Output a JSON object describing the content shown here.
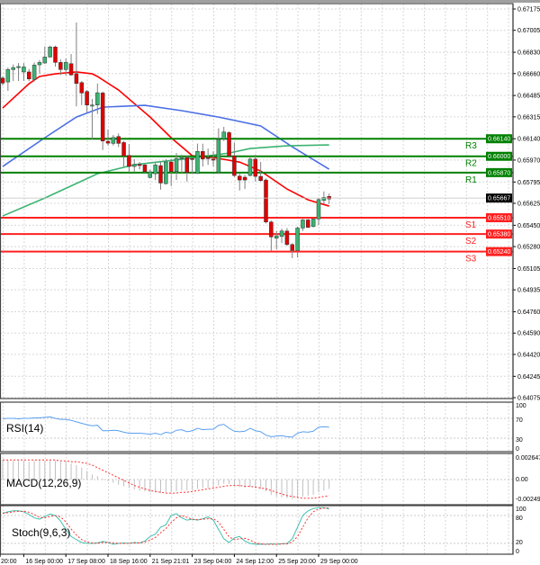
{
  "chart_data": [
    {
      "type": "candlestick",
      "price_axis": {
        "min": 0.64075,
        "max": 0.67175,
        "tick_labels": [
          "0.67175",
          "0.67005",
          "0.66830",
          "0.66660",
          "0.66485",
          "0.66315",
          "0.66140",
          "0.65970",
          "0.65795",
          "0.65625",
          "0.65450",
          "0.65280",
          "0.65105",
          "0.64935",
          "0.64760",
          "0.64590",
          "0.64420",
          "0.64245",
          "0.64075"
        ]
      },
      "time_axis": {
        "tick_labels": [
          {
            "label": "20:00",
            "candle": -0.5
          },
          {
            "label": "16 Sep 00:00",
            "candle": 4
          },
          {
            "label": "17 Sep 08:00",
            "candle": 12
          },
          {
            "label": "18 Sep 16:00",
            "candle": 20
          },
          {
            "label": "21 Sep 21:01",
            "candle": 28
          },
          {
            "label": "23 Sep 04:00",
            "candle": 36
          },
          {
            "label": "24 Sep 12:00",
            "candle": 44
          },
          {
            "label": "25 Sep 20:00",
            "candle": 52
          },
          {
            "label": "29 Sep 00:00",
            "candle": 60
          }
        ]
      },
      "grid": true,
      "ohlc": [
        [
          0.66624,
          0.66637,
          0.66565,
          0.66584
        ],
        [
          0.66593,
          0.66708,
          0.66522,
          0.66692
        ],
        [
          0.66692,
          0.66732,
          0.66601,
          0.66708
        ],
        [
          0.66708,
          0.66744,
          0.66601,
          0.66716
        ],
        [
          0.66673,
          0.66744,
          0.66601,
          0.66713
        ],
        [
          0.66673,
          0.66696,
          0.66601,
          0.66617
        ],
        [
          0.66613,
          0.66749,
          0.66596,
          0.66728
        ],
        [
          0.6673,
          0.66768,
          0.6666,
          0.66749
        ],
        [
          0.66744,
          0.66876,
          0.66739,
          0.66792
        ],
        [
          0.66792,
          0.66883,
          0.66787,
          0.66872
        ],
        [
          0.66872,
          0.66883,
          0.66716,
          0.66749
        ],
        [
          0.66749,
          0.66773,
          0.66649,
          0.66692
        ],
        [
          0.66692,
          0.6678,
          0.66644,
          0.66749
        ],
        [
          0.66739,
          0.66816,
          0.66644,
          0.66649
        ],
        [
          0.6666,
          0.67067,
          0.66399,
          0.66581
        ],
        [
          0.66588,
          0.66601,
          0.66409,
          0.66505
        ],
        [
          0.66517,
          0.66529,
          0.66349,
          0.66409
        ],
        [
          0.66409,
          0.66457,
          0.66134,
          0.66409
        ],
        [
          0.66409,
          0.66581,
          0.66337,
          0.66507
        ],
        [
          0.66505,
          0.66517,
          0.6605,
          0.66122
        ],
        [
          0.6612,
          0.66213,
          0.66086,
          0.66105
        ],
        [
          0.66103,
          0.6617,
          0.66086,
          0.6615
        ],
        [
          0.66158,
          0.66182,
          0.66074,
          0.66103
        ],
        [
          0.6611,
          0.66122,
          0.65919,
          0.66003
        ],
        [
          0.66007,
          0.66098,
          0.65871,
          0.65919
        ],
        [
          0.65919,
          0.65978,
          0.65871,
          0.65935
        ],
        [
          0.65935,
          0.65955,
          0.65895,
          0.65931
        ],
        [
          0.65931,
          0.65942,
          0.65871,
          0.65878
        ],
        [
          0.65831,
          0.65895,
          0.65823,
          0.65876
        ],
        [
          0.65861,
          0.65955,
          0.65811,
          0.65931
        ],
        [
          0.65926,
          0.65955,
          0.65734,
          0.65787
        ],
        [
          0.65782,
          0.65978,
          0.65775,
          0.65955
        ],
        [
          0.65955,
          0.65978,
          0.65763,
          0.65878
        ],
        [
          0.65878,
          0.66026,
          0.65811,
          0.65983
        ],
        [
          0.65983,
          0.66014,
          0.65859,
          0.6599
        ],
        [
          0.6599,
          0.66003,
          0.65799,
          0.65871
        ],
        [
          0.65983,
          0.65985,
          0.65859,
          0.6598
        ],
        [
          0.65863,
          0.66101,
          0.65859,
          0.66039
        ],
        [
          0.66039,
          0.66101,
          0.65919,
          0.65978
        ],
        [
          0.6599,
          0.66062,
          0.65931,
          0.65983
        ],
        [
          0.65978,
          0.66039,
          0.65919,
          0.65976
        ],
        [
          0.65871,
          0.66223,
          0.65859,
          0.66134
        ],
        [
          0.66139,
          0.66235,
          0.66122,
          0.66194
        ],
        [
          0.66189,
          0.66199,
          0.6599,
          0.66003
        ],
        [
          0.66003,
          0.6611,
          0.65835,
          0.65847
        ],
        [
          0.65842,
          0.65861,
          0.65727,
          0.65811
        ],
        [
          0.65833,
          0.65852,
          0.65739,
          0.65811
        ],
        [
          0.65847,
          0.6599,
          0.6584,
          0.65978
        ],
        [
          0.65978,
          0.66014,
          0.65799,
          0.6584
        ],
        [
          0.6584,
          0.65955,
          0.65799,
          0.65806
        ],
        [
          0.65811,
          0.65823,
          0.65464,
          0.65476
        ],
        [
          0.65476,
          0.65488,
          0.65244,
          0.65357
        ],
        [
          0.65347,
          0.65404,
          0.6526,
          0.65366
        ],
        [
          0.65361,
          0.65423,
          0.65308,
          0.65404
        ],
        [
          0.65404,
          0.65428,
          0.65285,
          0.65296
        ],
        [
          0.65296,
          0.65308,
          0.65188,
          0.65249
        ],
        [
          0.65249,
          0.6544,
          0.65193,
          0.65428
        ],
        [
          0.65428,
          0.655,
          0.65404,
          0.65493
        ],
        [
          0.65493,
          0.655,
          0.65428,
          0.65433
        ],
        [
          0.6544,
          0.65504,
          0.65433,
          0.655
        ],
        [
          0.655,
          0.65667,
          0.65452,
          0.65655
        ],
        [
          0.65648,
          0.6572,
          0.65619,
          0.65672
        ],
        [
          0.6568,
          0.65703,
          0.65619,
          0.6566
        ]
      ],
      "moving_averages": [
        {
          "color": "#ff0000",
          "points": [
            [
              0,
              0.66385
            ],
            [
              5,
              0.66579
            ],
            [
              7,
              0.66637
            ],
            [
              10,
              0.66658
            ],
            [
              14,
              0.66673
            ],
            [
              17,
              0.66658
            ],
            [
              18,
              0.66637
            ],
            [
              22,
              0.66529
            ],
            [
              25,
              0.66421
            ],
            [
              28,
              0.66313
            ],
            [
              32,
              0.66148
            ],
            [
              36,
              0.66005
            ],
            [
              40,
              0.6599
            ],
            [
              45,
              0.65954
            ],
            [
              49,
              0.65883
            ],
            [
              54,
              0.65739
            ],
            [
              58,
              0.65653
            ],
            [
              62,
              0.65603
            ]
          ]
        },
        {
          "color": "#4a6fe3",
          "points": [
            [
              0,
              0.65919
            ],
            [
              8,
              0.66148
            ],
            [
              14,
              0.66313
            ],
            [
              19,
              0.66392
            ],
            [
              27,
              0.66407
            ],
            [
              34,
              0.66364
            ],
            [
              41,
              0.66313
            ],
            [
              49,
              0.66242
            ],
            [
              55,
              0.66076
            ],
            [
              62,
              0.65897
            ]
          ]
        },
        {
          "color": "#3cb371",
          "points": [
            [
              0,
              0.65524
            ],
            [
              8,
              0.65667
            ],
            [
              18,
              0.65861
            ],
            [
              25,
              0.65933
            ],
            [
              34,
              0.65976
            ],
            [
              43,
              0.66026
            ],
            [
              47,
              0.66062
            ],
            [
              54,
              0.66084
            ],
            [
              62,
              0.66091
            ]
          ]
        }
      ],
      "levels": [
        {
          "name": "R3",
          "price": 0.6614,
          "label": "0.66140",
          "color": "#008000"
        },
        {
          "name": "R2",
          "price": 0.66,
          "label": "0.66000",
          "color": "#008000"
        },
        {
          "name": "R1",
          "price": 0.6587,
          "label": "0.65870",
          "color": "#008000"
        },
        {
          "name": "S1",
          "price": 0.6551,
          "label": "0.65510",
          "color": "#ff2020"
        },
        {
          "name": "S2",
          "price": 0.6538,
          "label": "0.65380",
          "color": "#ff2020"
        },
        {
          "name": "S3",
          "price": 0.6524,
          "label": "0.65240",
          "color": "#ff2020"
        }
      ],
      "current_price": {
        "price": 0.65667,
        "label": "0.65667"
      },
      "colors": {
        "bull": "#3cb371",
        "bear": "#e00000",
        "wick": "#808080"
      }
    },
    {
      "type": "line",
      "title": "RSI(14)",
      "ylim": [
        0,
        100
      ],
      "tick_labels": [
        "100",
        "70",
        "30",
        "0"
      ],
      "levels": [
        70,
        30
      ],
      "color": "#5aa0f0",
      "values": [
        69,
        70,
        70,
        69,
        70,
        70,
        71,
        71,
        72,
        73,
        70,
        68,
        68,
        66,
        63,
        60,
        57,
        55,
        56,
        45,
        45,
        46,
        45,
        42,
        40,
        40,
        40,
        39,
        38,
        40,
        37,
        42,
        40,
        46,
        47,
        43,
        45,
        50,
        47,
        48,
        48,
        56,
        58,
        50,
        44,
        43,
        44,
        50,
        45,
        43,
        36,
        33,
        34,
        35,
        33,
        32,
        40,
        43,
        42,
        44,
        52,
        53,
        52
      ]
    },
    {
      "type": "bar",
      "title": "MACD(12,26,9)",
      "tick_labels": [
        "0.002647",
        "0.00",
        "-0.002498"
      ],
      "ylim": [
        -0.002498,
        0.002647
      ],
      "series": [
        {
          "kind": "histogram",
          "color": "#c0c0c0",
          "values": [
            0.0023,
            0.0023,
            0.0022,
            0.0022,
            0.0022,
            0.0021,
            0.0022,
            0.0022,
            0.0022,
            0.0023,
            0.0022,
            0.0021,
            0.0021,
            0.0019,
            0.0017,
            0.0014,
            0.001,
            0.0006,
            0.0004,
            0.0001,
            -0.0002,
            -0.0004,
            -0.0006,
            -0.0008,
            -0.001,
            -0.0012,
            -0.0013,
            -0.0014,
            -0.0015,
            -0.0015,
            -0.0016,
            -0.0015,
            -0.0015,
            -0.0014,
            -0.0013,
            -0.0013,
            -0.0012,
            -0.0011,
            -0.001,
            -0.001,
            -0.0009,
            -0.0007,
            -0.0005,
            -0.0005,
            -0.0007,
            -0.0009,
            -0.001,
            -0.0009,
            -0.001,
            -0.0011,
            -0.0014,
            -0.0018,
            -0.002,
            -0.0021,
            -0.0022,
            -0.0023,
            -0.0022,
            -0.002,
            -0.0019,
            -0.0018,
            -0.0015,
            -0.0013,
            -0.0011
          ]
        },
        {
          "kind": "signal",
          "color": "#ff3030",
          "values": [
            0.0023,
            0.0023,
            0.0023,
            0.0023,
            0.0023,
            0.0023,
            0.0023,
            0.0023,
            0.0023,
            0.0023,
            0.0023,
            0.0022,
            0.0022,
            0.0021,
            0.0021,
            0.002,
            0.0019,
            0.0017,
            0.0014,
            0.0011,
            0.0008,
            0.0005,
            0.0002,
            -0.0001,
            -0.0004,
            -0.0007,
            -0.0009,
            -0.0011,
            -0.0013,
            -0.0014,
            -0.0015,
            -0.0016,
            -0.0016,
            -0.0016,
            -0.0015,
            -0.0015,
            -0.0014,
            -0.0013,
            -0.0012,
            -0.0011,
            -0.001,
            -0.0009,
            -0.0008,
            -0.0007,
            -0.0007,
            -0.0007,
            -0.0008,
            -0.0008,
            -0.0009,
            -0.001,
            -0.0011,
            -0.0013,
            -0.0015,
            -0.0017,
            -0.0019,
            -0.002,
            -0.0021,
            -0.0022,
            -0.0022,
            -0.0022,
            -0.0021,
            -0.002,
            -0.0019
          ]
        }
      ]
    },
    {
      "type": "line",
      "title": "Stoch(9,6,3)",
      "ylim": [
        0,
        100
      ],
      "tick_labels": [
        "100",
        "80",
        "20",
        "0"
      ],
      "levels": [
        80,
        20
      ],
      "series": [
        {
          "kind": "main",
          "color": "#40c0b0",
          "values": [
            85,
            88,
            90,
            90,
            88,
            82,
            75,
            72,
            78,
            83,
            80,
            68,
            50,
            35,
            28,
            22,
            20,
            20,
            21,
            24,
            22,
            18,
            20,
            21,
            20,
            22,
            21,
            25,
            35,
            40,
            55,
            60,
            80,
            84,
            75,
            70,
            72,
            70,
            73,
            77,
            70,
            50,
            30,
            22,
            32,
            35,
            25,
            20,
            18,
            18,
            18,
            19,
            18,
            19,
            20,
            30,
            55,
            80,
            90,
            95,
            97,
            97,
            94
          ]
        },
        {
          "kind": "signal",
          "color": "#ff3030",
          "values": [
            85,
            86,
            88,
            89,
            89,
            87,
            82,
            76,
            75,
            78,
            80,
            77,
            66,
            51,
            38,
            28,
            23,
            21,
            20,
            22,
            22,
            21,
            20,
            20,
            20,
            21,
            21,
            23,
            27,
            33,
            43,
            52,
            65,
            75,
            80,
            76,
            72,
            71,
            72,
            73,
            73,
            66,
            50,
            34,
            28,
            30,
            31,
            27,
            21,
            19,
            18,
            18,
            18,
            19,
            19,
            23,
            35,
            55,
            75,
            88,
            94,
            96,
            96
          ]
        }
      ]
    }
  ]
}
